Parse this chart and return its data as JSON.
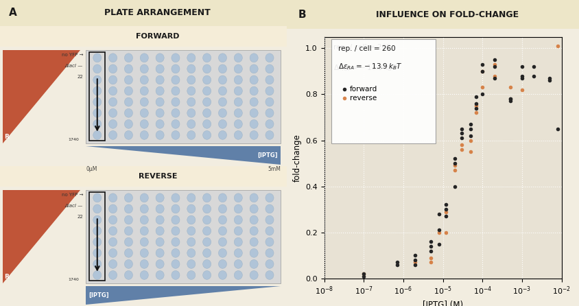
{
  "title_A": "PLATE ARRANGEMENT",
  "title_B": "INFLUENCE ON FOLD-CHANGE",
  "label_forward": "FORWARD",
  "label_reverse": "REVERSE",
  "bg_color": "#f2ede0",
  "panel_header_color": "#ede6c8",
  "section_header_color": "#f5edd8",
  "plate_bg": "#d8d8d8",
  "well_color": "#b0c4d8",
  "well_edge_color": "#98b0c4",
  "triangle_color": "#c05538",
  "iptg_arrow_color": "#6080a8",
  "scatter_bg": "#e8e2d4",
  "scatter_forward_color": "#252525",
  "scatter_reverse_color": "#d4783a",
  "annotation_text1": "rep. / cell = 260",
  "annotation_text2": "$\\Delta\\varepsilon_{RA} = -13.9\\,k_BT$",
  "legend_forward": "forward",
  "legend_reverse": "reverse",
  "xlabel": "[IPTG] (M)",
  "ylabel": "fold-change",
  "ylim": [
    0.0,
    1.05
  ],
  "forward_x": [
    1e-07,
    1e-07,
    7e-07,
    7e-07,
    2e-06,
    2e-06,
    2e-06,
    5e-06,
    5e-06,
    5e-06,
    8e-06,
    8e-06,
    8e-06,
    1.2e-05,
    1.2e-05,
    1.2e-05,
    2e-05,
    2e-05,
    2e-05,
    3e-05,
    3e-05,
    3e-05,
    5e-05,
    5e-05,
    5e-05,
    7e-05,
    7e-05,
    7e-05,
    0.0001,
    0.0001,
    0.0001,
    0.0002,
    0.0002,
    0.0002,
    0.0005,
    0.0005,
    0.0005,
    0.001,
    0.001,
    0.001,
    0.002,
    0.002,
    0.005,
    0.005,
    0.008
  ],
  "forward_y": [
    0.01,
    0.02,
    0.06,
    0.07,
    0.06,
    0.08,
    0.1,
    0.12,
    0.14,
    0.16,
    0.15,
    0.21,
    0.28,
    0.27,
    0.3,
    0.32,
    0.4,
    0.5,
    0.52,
    0.61,
    0.63,
    0.65,
    0.62,
    0.65,
    0.67,
    0.74,
    0.76,
    0.79,
    0.8,
    0.9,
    0.93,
    0.87,
    0.92,
    0.95,
    0.77,
    0.78,
    0.78,
    0.87,
    0.88,
    0.92,
    0.88,
    0.92,
    0.86,
    0.87,
    0.65
  ],
  "reverse_x": [
    1e-07,
    2e-06,
    5e-06,
    5e-06,
    8e-06,
    1.2e-05,
    1.2e-05,
    2e-05,
    2e-05,
    3e-05,
    3e-05,
    5e-05,
    5e-05,
    7e-05,
    7e-05,
    0.0001,
    0.0001,
    0.0002,
    0.0002,
    0.0005,
    0.001,
    0.008
  ],
  "reverse_y": [
    0.02,
    0.07,
    0.07,
    0.09,
    0.2,
    0.2,
    0.29,
    0.47,
    0.49,
    0.56,
    0.58,
    0.55,
    0.6,
    0.72,
    0.75,
    0.83,
    0.9,
    0.88,
    0.93,
    0.83,
    0.82,
    1.01
  ],
  "rows": 8,
  "cols": 12
}
